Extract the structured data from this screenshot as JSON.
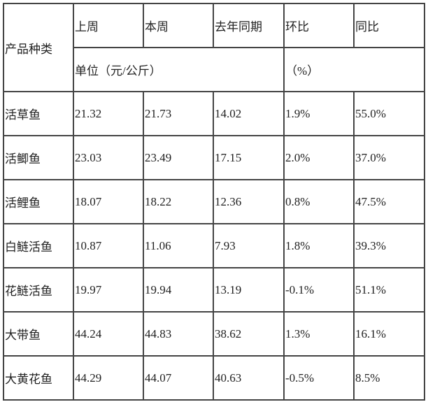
{
  "header": {
    "product_type": "产品种类",
    "columns": [
      "上周",
      "本周",
      "去年同期",
      "环比",
      "同比"
    ],
    "price_unit": "单位（元/公斤）",
    "percent_unit": "（%）"
  },
  "rows": [
    {
      "name": "活草鱼",
      "last_week": "21.32",
      "this_week": "21.73",
      "last_year": "14.02",
      "mom": "1.9%",
      "yoy": "55.0%"
    },
    {
      "name": "活鲫鱼",
      "last_week": "23.03",
      "this_week": "23.49",
      "last_year": "17.15",
      "mom": "2.0%",
      "yoy": "37.0%"
    },
    {
      "name": "活鲤鱼",
      "last_week": "18.07",
      "this_week": "18.22",
      "last_year": "12.36",
      "mom": "0.8%",
      "yoy": "47.5%"
    },
    {
      "name": "白鲢活鱼",
      "last_week": "10.87",
      "this_week": "11.06",
      "last_year": "7.93",
      "mom": "1.8%",
      "yoy": "39.3%"
    },
    {
      "name": "花鲢活鱼",
      "last_week": "19.97",
      "this_week": "19.94",
      "last_year": "13.19",
      "mom": "-0.1%",
      "yoy": "51.1%"
    },
    {
      "name": "大带鱼",
      "last_week": "44.24",
      "this_week": "44.83",
      "last_year": "38.62",
      "mom": "1.3%",
      "yoy": "16.1%"
    },
    {
      "name": "大黄花鱼",
      "last_week": "44.29",
      "this_week": "44.07",
      "last_year": "40.63",
      "mom": "-0.5%",
      "yoy": "8.5%"
    }
  ]
}
